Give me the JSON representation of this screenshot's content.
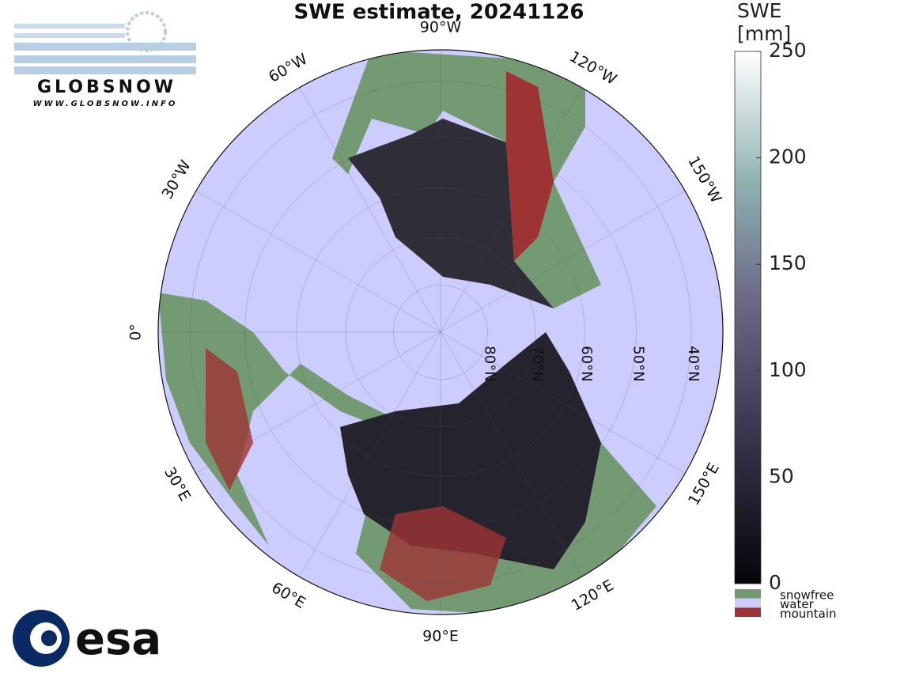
{
  "title": "SWE estimate, 20241126",
  "map": {
    "longitude_labels": [
      {
        "value": -90,
        "label": "90°W"
      },
      {
        "value": -120,
        "label": "120°W"
      },
      {
        "value": -150,
        "label": "150°W"
      },
      {
        "value": 150,
        "label": "150°E"
      },
      {
        "value": 120,
        "label": "120°E"
      },
      {
        "value": 90,
        "label": "90°E"
      },
      {
        "value": 60,
        "label": "60°E"
      },
      {
        "value": 30,
        "label": "30°E"
      },
      {
        "value": 0,
        "label": "0°"
      },
      {
        "value": -30,
        "label": "30°W"
      },
      {
        "value": -60,
        "label": "60°W"
      }
    ],
    "latitude_labels": [
      {
        "value": 80,
        "label": "80°N"
      },
      {
        "value": 70,
        "label": "70°N"
      },
      {
        "value": 60,
        "label": "60°N"
      },
      {
        "value": 50,
        "label": "50°N"
      },
      {
        "value": 40,
        "label": "40°N"
      }
    ]
  },
  "colorbar": {
    "label_lines": [
      "SWE",
      "[mm]"
    ],
    "lim": [
      0,
      250
    ],
    "ticks": [
      0,
      50,
      100,
      150,
      200,
      250
    ]
  },
  "legend": [
    {
      "label": "snowfree",
      "color": "#739a73"
    },
    {
      "label": "water",
      "color": "#ccccff"
    },
    {
      "label": "mountain",
      "color": "#9e3333"
    }
  ],
  "logos": {
    "globsnow": "GLOBSNOW",
    "url": "WWW.GLOBSNOW.INFO",
    "esa": "esa"
  }
}
